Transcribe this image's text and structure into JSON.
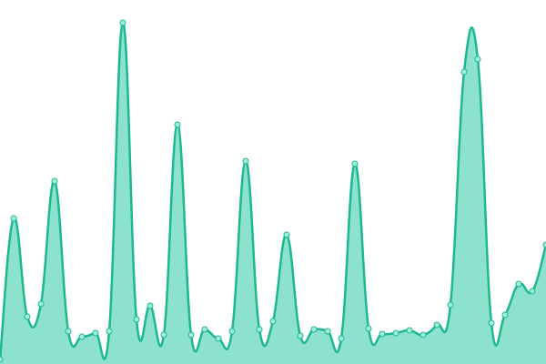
{
  "chart_data": {
    "type": "area",
    "values": [
      5,
      160,
      52,
      66,
      201,
      36,
      30,
      34,
      36,
      375,
      49,
      64,
      32,
      263,
      32,
      38,
      28,
      36,
      223,
      38,
      47,
      142,
      31,
      38,
      36,
      28,
      220,
      39,
      33,
      34,
      37,
      32,
      43,
      65,
      321,
      335,
      45,
      54,
      88,
      80,
      131
    ],
    "ylim": [
      0,
      400
    ],
    "color": "#1db892",
    "area_color": "#8ce2cd",
    "marker_color": "#9ff0dc"
  }
}
